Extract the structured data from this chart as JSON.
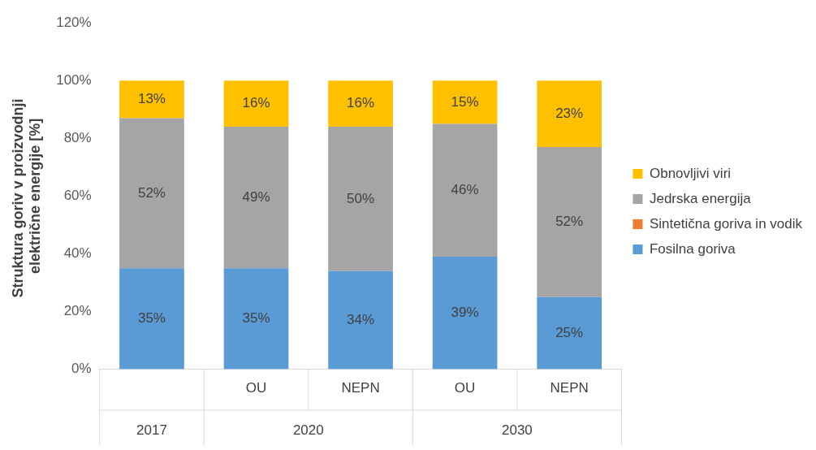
{
  "chart_data": {
    "type": "bar",
    "stacked": true,
    "ylabel": "Struktura goriv v proizvodnji  električne energije [%]",
    "categories": [
      null,
      "OU",
      "NEPN",
      "OU",
      "NEPN"
    ],
    "annotations": [
      "2017",
      "2020",
      "2030"
    ],
    "series": [
      {
        "name": "Fosilna goriva",
        "color": "#5b9bd5",
        "values": [
          35,
          35,
          34,
          39,
          25
        ],
        "value_labels": [
          "35%",
          "35%",
          "34%",
          "39%",
          "25%"
        ]
      },
      {
        "name": "Sintetična goriva in vodik",
        "color": "#ed7d31",
        "values": [
          0,
          0,
          0,
          0,
          0
        ],
        "value_labels": [
          null,
          null,
          null,
          null,
          null
        ]
      },
      {
        "name": "Jedrska energija",
        "color": "#a5a5a5",
        "values": [
          52,
          49,
          50,
          46,
          52
        ],
        "value_labels": [
          "52%",
          "49%",
          "50%",
          "46%",
          "52%"
        ]
      },
      {
        "name": "Obnovljivi viri",
        "color": "#ffc000",
        "values": [
          13,
          16,
          16,
          15,
          23
        ],
        "value_labels": [
          "13%",
          "16%",
          "16%",
          "15%",
          "23%"
        ]
      }
    ],
    "ylim": [
      0,
      120
    ],
    "yticks": [
      {
        "value": 0,
        "label": "0%"
      },
      {
        "value": 20,
        "label": "20%"
      },
      {
        "value": 40,
        "label": "40%"
      },
      {
        "value": 60,
        "label": "60%"
      },
      {
        "value": 80,
        "label": "80%"
      },
      {
        "value": 100,
        "label": "100%"
      },
      {
        "value": 120,
        "label": "120%"
      }
    ],
    "grid": false,
    "legend": "right"
  }
}
